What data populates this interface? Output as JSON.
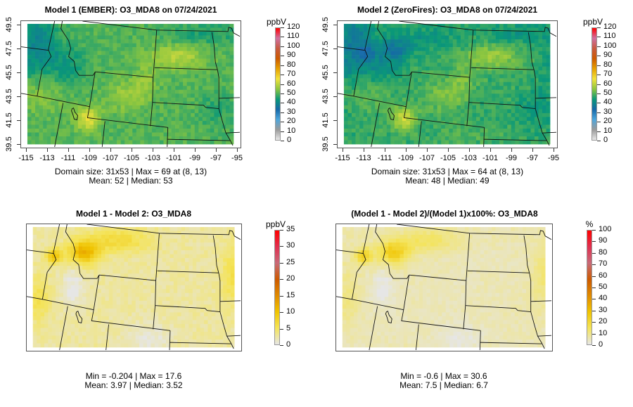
{
  "chart_data": [
    {
      "type": "heatmap",
      "title": "Model 1 (EMBER): O3_MDA8 on 07/24/2021",
      "unit": "ppbV",
      "grid_size": "31x53",
      "x_ticks": [
        "-115",
        "-113",
        "-111",
        "-109",
        "-107",
        "-105",
        "-103",
        "-101",
        "-99",
        "-97",
        "-95"
      ],
      "y_ticks": [
        "49.5",
        "47.5",
        "45.5",
        "43.5",
        "41.5",
        "39.5"
      ],
      "xlim": [
        -115,
        -95
      ],
      "ylim": [
        39.5,
        49.5
      ],
      "legend_ticks": [
        "120",
        "110",
        "100",
        "90",
        "80",
        "70",
        "60",
        "50",
        "40",
        "30",
        "20",
        "10",
        "0"
      ],
      "legend_range": [
        0,
        120
      ],
      "colormap": [
        "#e8e8e8",
        "#9a9a9a",
        "#4da6dc",
        "#1668a8",
        "#0a9878",
        "#8cc63f",
        "#f2e23c",
        "#e6a000",
        "#cc5a00",
        "#c85a40",
        "#d070a0",
        "#ff0000"
      ],
      "stats_line1": "Domain size: 31x53 | Max = 69 at (8, 13)",
      "stats_line2": "Mean: 52 |  Median: 53",
      "max": 69,
      "mean": 52,
      "median": 53
    },
    {
      "type": "heatmap",
      "title": "Model 2 (ZeroFires): O3_MDA8 on 07/24/2021",
      "unit": "ppbV",
      "grid_size": "31x53",
      "x_ticks": [
        "-115",
        "-113",
        "-111",
        "-109",
        "-107",
        "-105",
        "-103",
        "-101",
        "-99",
        "-97",
        "-95"
      ],
      "y_ticks": [
        "49.5",
        "47.5",
        "45.5",
        "43.5",
        "41.5",
        "39.5"
      ],
      "xlim": [
        -115,
        -95
      ],
      "ylim": [
        39.5,
        49.5
      ],
      "legend_ticks": [
        "120",
        "110",
        "100",
        "90",
        "80",
        "70",
        "60",
        "50",
        "40",
        "30",
        "20",
        "10",
        "0"
      ],
      "legend_range": [
        0,
        120
      ],
      "colormap": [
        "#e8e8e8",
        "#9a9a9a",
        "#4da6dc",
        "#1668a8",
        "#0a9878",
        "#8cc63f",
        "#f2e23c",
        "#e6a000",
        "#cc5a00",
        "#c85a40",
        "#d070a0",
        "#ff0000"
      ],
      "stats_line1": "Domain size: 31x53 | Max = 64 at (8, 13)",
      "stats_line2": "Mean: 48 |  Median: 49",
      "max": 64,
      "mean": 48,
      "median": 49
    },
    {
      "type": "heatmap",
      "title": "Model 1 - Model 2: O3_MDA8",
      "unit": "ppbV",
      "grid_size": "31x53",
      "legend_ticks": [
        "35",
        "30",
        "25",
        "20",
        "15",
        "10",
        "5",
        "0"
      ],
      "legend_range": [
        0,
        35
      ],
      "colormap": [
        "#e6e6e6",
        "#f4e45a",
        "#f0c400",
        "#e08a00",
        "#cc5a00",
        "#c86a78",
        "#e03050",
        "#ff0000"
      ],
      "stats_line1": "Min = -0.204 | Max = 17.6",
      "stats_line2": "Mean: 3.97 |  Median: 3.52",
      "min": -0.204,
      "max": 17.6,
      "mean": 3.97,
      "median": 3.52
    },
    {
      "type": "heatmap",
      "title": "(Model 1 - Model 2)/(Model 1)x100%: O3_MDA8",
      "unit": "%",
      "grid_size": "31x53",
      "legend_ticks": [
        "100",
        "90",
        "80",
        "70",
        "60",
        "50",
        "40",
        "30",
        "20",
        "10",
        "0"
      ],
      "legend_range": [
        0,
        100
      ],
      "colormap": [
        "#e6e6e6",
        "#f4e45a",
        "#f0c400",
        "#e08a00",
        "#cc5a00",
        "#c86a78",
        "#e03050",
        "#ff0000"
      ],
      "stats_line1": "Min = -0.6 | Max = 30.6",
      "stats_line2": "Mean: 7.5 |  Median: 6.7",
      "min": -0.6,
      "max": 30.6,
      "mean": 7.5,
      "median": 6.7
    }
  ]
}
